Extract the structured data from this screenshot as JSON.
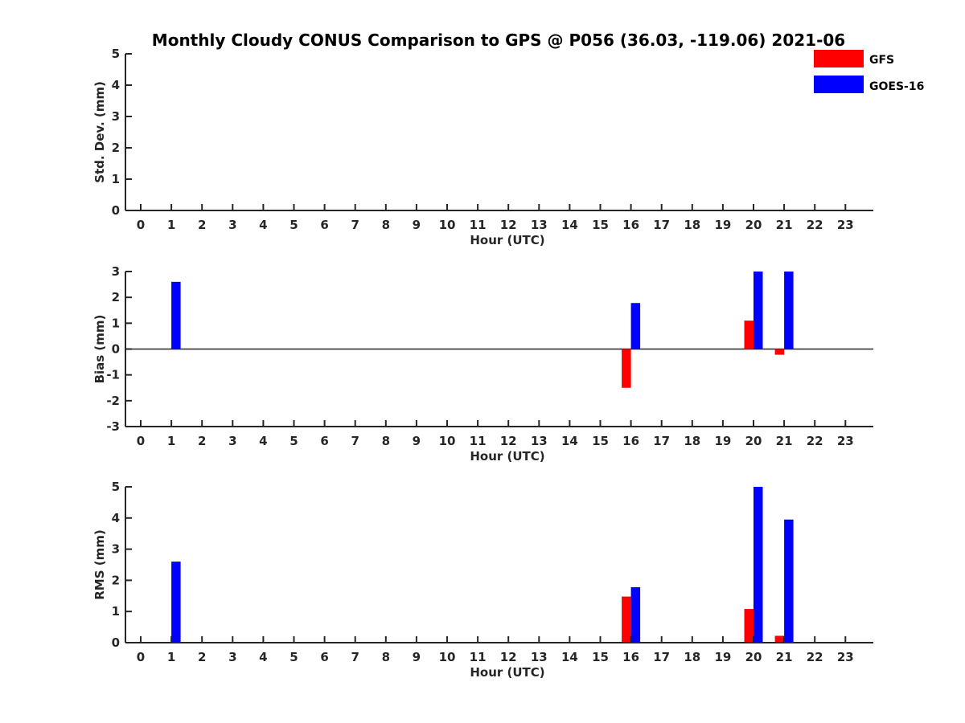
{
  "title": "Monthly Cloudy CONUS Comparison to GPS @ P056 (36.03, -119.06) 2021-06",
  "legend": {
    "placement": "top-right"
  },
  "colors": {
    "GFS": "#ff0000",
    "GOES-16": "#0000ff",
    "axis": "#262626"
  },
  "chart_data": [
    {
      "type": "bar",
      "xlabel": "Hour (UTC)",
      "ylabel": "Std. Dev. (mm)",
      "ylim": [
        0,
        5
      ],
      "yticks": [
        0,
        1,
        2,
        3,
        4,
        5
      ],
      "categories": [
        0,
        1,
        2,
        3,
        4,
        5,
        6,
        7,
        8,
        9,
        10,
        11,
        12,
        13,
        14,
        15,
        16,
        17,
        18,
        19,
        20,
        21,
        22,
        23
      ],
      "series": [
        {
          "name": "GFS",
          "values": [
            0,
            0,
            0,
            0,
            0,
            0,
            0,
            0,
            0,
            0,
            0,
            0,
            0,
            0,
            0,
            0,
            0,
            0,
            0,
            0,
            0,
            0,
            0,
            0
          ]
        },
        {
          "name": "GOES-16",
          "values": [
            0,
            0,
            0,
            0,
            0,
            0,
            0,
            0,
            0,
            0,
            0,
            0,
            0,
            0,
            0,
            0,
            0,
            0,
            0,
            0,
            0,
            0,
            0,
            0
          ]
        }
      ]
    },
    {
      "type": "bar",
      "xlabel": "Hour (UTC)",
      "ylabel": "Bias (mm)",
      "ylim": [
        -3,
        3
      ],
      "yticks": [
        -3,
        -2,
        -1,
        0,
        1,
        2,
        3
      ],
      "categories": [
        0,
        1,
        2,
        3,
        4,
        5,
        6,
        7,
        8,
        9,
        10,
        11,
        12,
        13,
        14,
        15,
        16,
        17,
        18,
        19,
        20,
        21,
        22,
        23
      ],
      "series": [
        {
          "name": "GFS",
          "values": [
            0,
            0,
            0,
            0,
            0,
            0,
            0,
            0,
            0,
            0,
            0,
            0,
            0,
            0,
            0,
            0,
            -1.5,
            0,
            0,
            0,
            1.1,
            -0.22,
            0,
            0
          ]
        },
        {
          "name": "GOES-16",
          "values": [
            0,
            2.6,
            0,
            0,
            0,
            0,
            0,
            0,
            0,
            0,
            0,
            0,
            0,
            0,
            0,
            0,
            1.78,
            0,
            0,
            0,
            3.0,
            3.0,
            0,
            0
          ]
        }
      ]
    },
    {
      "type": "bar",
      "xlabel": "Hour (UTC)",
      "ylabel": "RMS (mm)",
      "ylim": [
        0,
        5
      ],
      "yticks": [
        0,
        1,
        2,
        3,
        4,
        5
      ],
      "categories": [
        0,
        1,
        2,
        3,
        4,
        5,
        6,
        7,
        8,
        9,
        10,
        11,
        12,
        13,
        14,
        15,
        16,
        17,
        18,
        19,
        20,
        21,
        22,
        23
      ],
      "series": [
        {
          "name": "GFS",
          "values": [
            0,
            0,
            0,
            0,
            0,
            0,
            0,
            0,
            0,
            0,
            0,
            0,
            0,
            0,
            0,
            0,
            1.48,
            0,
            0,
            0,
            1.08,
            0.22,
            0,
            0
          ]
        },
        {
          "name": "GOES-16",
          "values": [
            0,
            2.6,
            0,
            0,
            0,
            0,
            0,
            0,
            0,
            0,
            0,
            0,
            0,
            0,
            0,
            0,
            1.78,
            0,
            0,
            0,
            5.0,
            3.95,
            0,
            0
          ]
        }
      ]
    }
  ]
}
